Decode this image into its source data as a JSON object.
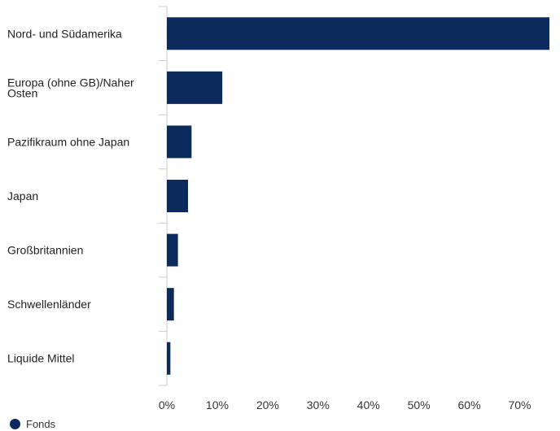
{
  "colors": {
    "series": "#0c2a5b",
    "axis": "#cccccc"
  },
  "legend": {
    "placement": "bottom-left"
  },
  "chart_data": {
    "type": "bar",
    "orientation": "horizontal",
    "categories": [
      [
        "Nord- und Südamerika"
      ],
      [
        "Europa (ohne GB)/Naher",
        "Osten"
      ],
      [
        "Pazifikraum ohne Japan"
      ],
      [
        "Japan"
      ],
      [
        "Großbritannien"
      ],
      [
        "Schwellenländer"
      ],
      [
        "Liquide Mittel"
      ]
    ],
    "series": [
      {
        "name": "Fonds",
        "values": [
          75.9,
          11.0,
          4.9,
          4.2,
          2.2,
          1.4,
          0.7
        ]
      }
    ],
    "xlim": [
      0,
      78
    ],
    "xticks": [
      0,
      10,
      20,
      30,
      40,
      50,
      60,
      70
    ],
    "tick_suffix": "%",
    "grid": false
  }
}
